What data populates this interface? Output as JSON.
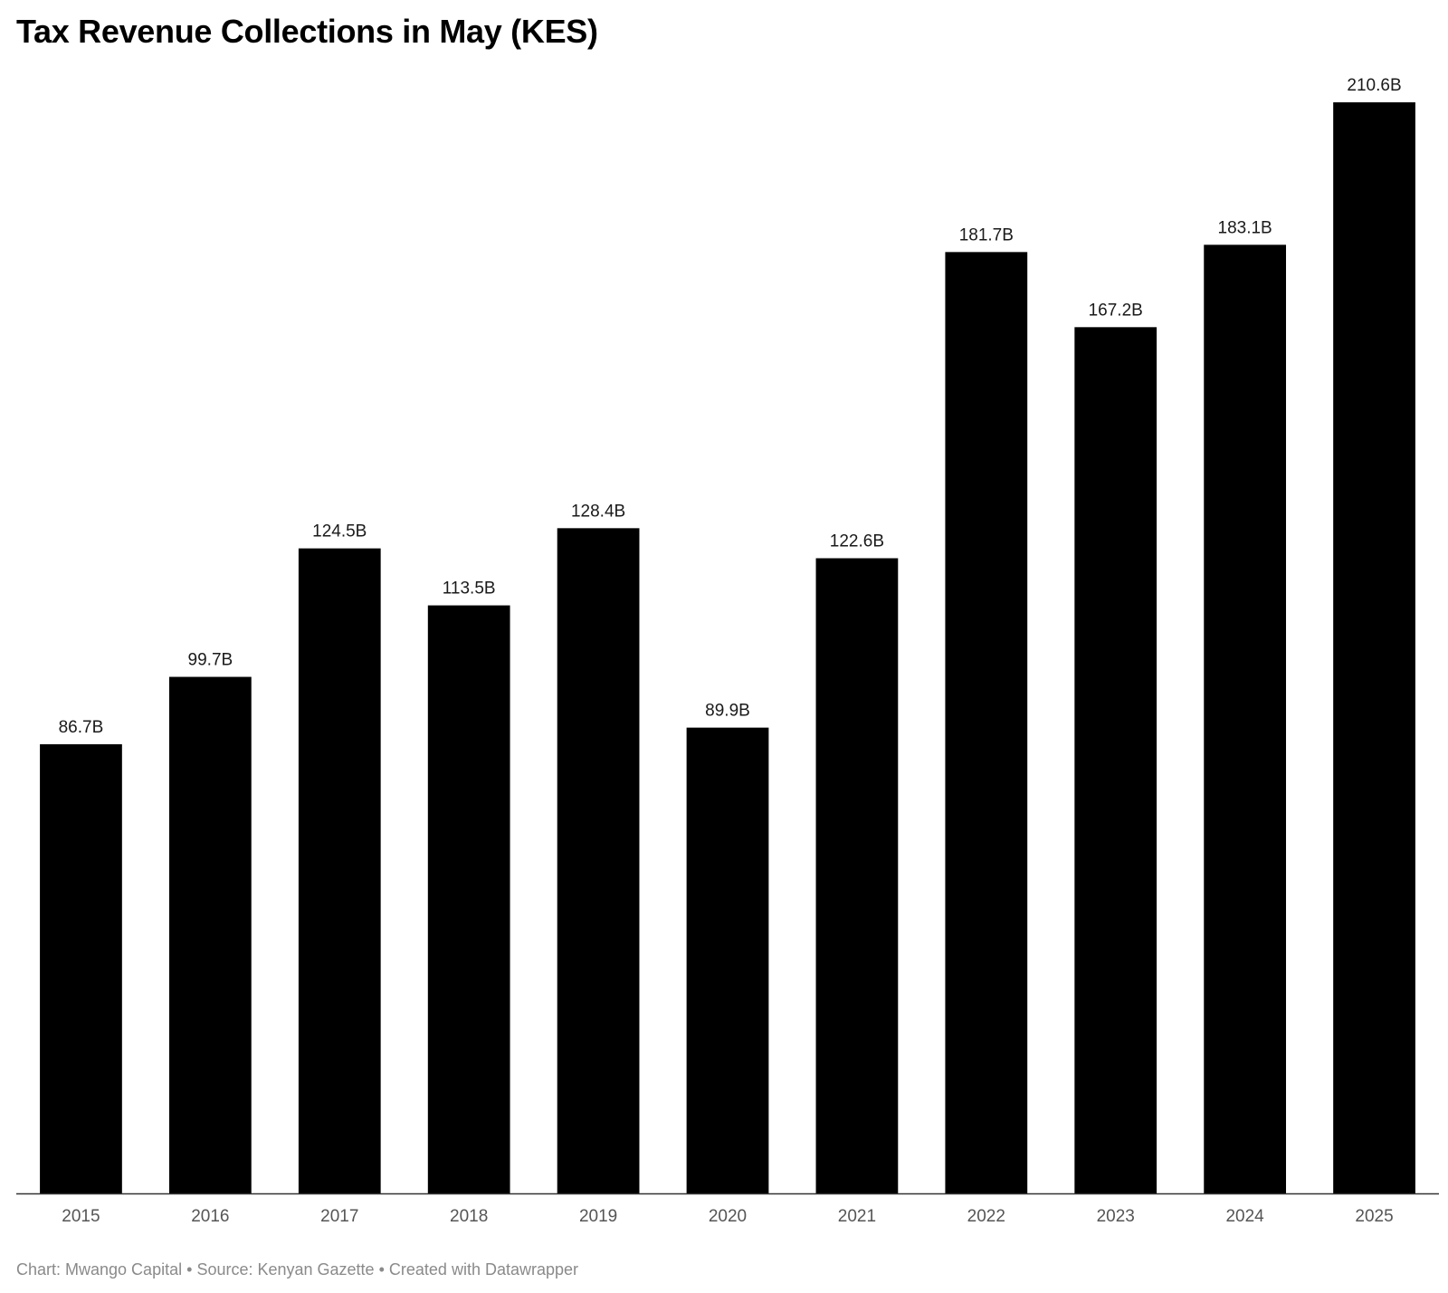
{
  "title": "Tax Revenue Collections in May (KES)",
  "footer": {
    "chart_credit": "Chart: Mwango Capital",
    "source": "Source: Kenyan Gazette",
    "created": "Created with Datawrapper",
    "separator": "•"
  },
  "colors": {
    "bar": "#000000",
    "axis": "#333333",
    "tick_text": "#555555",
    "footer_text": "#8a8a8a"
  },
  "chart_data": {
    "type": "bar",
    "title": "Tax Revenue Collections in May (KES)",
    "xlabel": "",
    "ylabel": "",
    "categories": [
      "2015",
      "2016",
      "2017",
      "2018",
      "2019",
      "2020",
      "2021",
      "2022",
      "2023",
      "2024",
      "2025"
    ],
    "values": [
      86.7,
      99.7,
      124.5,
      113.5,
      128.4,
      89.9,
      122.6,
      181.7,
      167.2,
      183.1,
      210.6
    ],
    "value_labels": [
      "86.7B",
      "99.7B",
      "124.5B",
      "113.5B",
      "128.4B",
      "89.9B",
      "122.6B",
      "181.7B",
      "167.2B",
      "183.1B",
      "210.6B"
    ],
    "unit": "B",
    "ylim": [
      0,
      210.6
    ],
    "grid": false,
    "legend": "none"
  }
}
